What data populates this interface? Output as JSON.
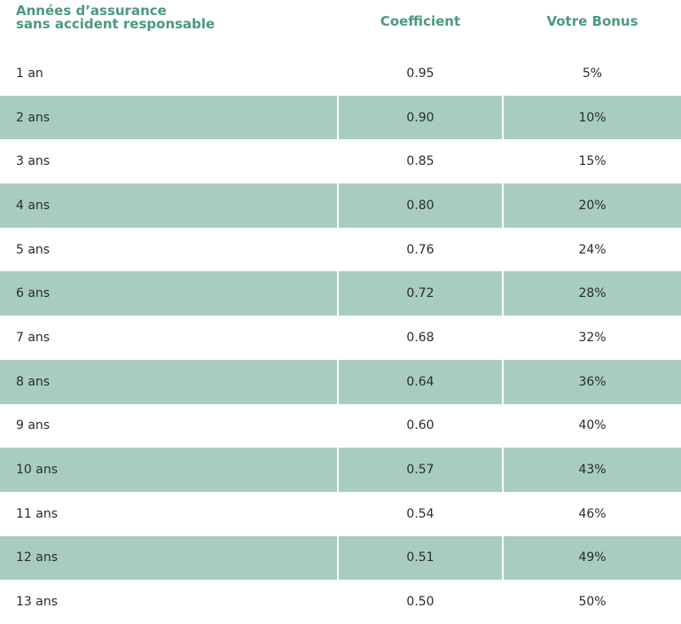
{
  "header": {
    "col1_line1": "Années d’assurance",
    "col1_line2": "sans accident responsable",
    "col2": "Coefficient",
    "col3": "Votre Bonus"
  },
  "rows": [
    {
      "years": "1 an",
      "coefficient": "0.95",
      "bonus": "5%"
    },
    {
      "years": "2 ans",
      "coefficient": "0.90",
      "bonus": "10%"
    },
    {
      "years": "3 ans",
      "coefficient": "0.85",
      "bonus": "15%"
    },
    {
      "years": "4 ans",
      "coefficient": "0.80",
      "bonus": "20%"
    },
    {
      "years": "5 ans",
      "coefficient": "0.76",
      "bonus": "24%"
    },
    {
      "years": "6 ans",
      "coefficient": "0.72",
      "bonus": "28%"
    },
    {
      "years": "7 ans",
      "coefficient": "0.68",
      "bonus": "32%"
    },
    {
      "years": "8 ans",
      "coefficient": "0.64",
      "bonus": "36%"
    },
    {
      "years": "9 ans",
      "coefficient": "0.60",
      "bonus": "40%"
    },
    {
      "years": "10 ans",
      "coefficient": "0.57",
      "bonus": "43%"
    },
    {
      "years": "11 ans",
      "coefficient": "0.54",
      "bonus": "46%"
    },
    {
      "years": "12 ans",
      "coefficient": "0.51",
      "bonus": "49%"
    },
    {
      "years": "13 ans",
      "coefficient": "0.50",
      "bonus": "50%"
    }
  ],
  "colors": {
    "header_text": "#4a9a7e",
    "shaded_row": "#a8cdc0"
  }
}
